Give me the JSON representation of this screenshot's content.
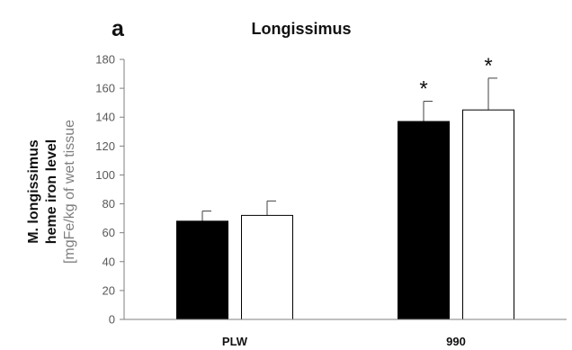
{
  "chart_data": {
    "type": "bar",
    "panel_letter": "a",
    "title": "Longissimus",
    "ylabel_line1": "M. longissimus",
    "ylabel_line2": "heme iron level",
    "ylabel_line3": "[mgFe/kg of wet tissue",
    "xlabel": "",
    "ylim": [
      0,
      180
    ],
    "yticks": [
      0,
      20,
      40,
      60,
      80,
      100,
      120,
      140,
      160,
      180
    ],
    "categories": [
      "PLW",
      "990"
    ],
    "series": [
      {
        "values": [
          68,
          137
        ],
        "errors": [
          7,
          14
        ],
        "color": "#000000"
      },
      {
        "values": [
          72,
          145
        ],
        "errors": [
          10,
          22
        ],
        "color": "#ffffff"
      }
    ],
    "significance": [
      {
        "category": "990",
        "series": 0,
        "label": "*"
      },
      {
        "category": "990",
        "series": 1,
        "label": "*"
      }
    ],
    "grid": false,
    "legend": "none"
  }
}
